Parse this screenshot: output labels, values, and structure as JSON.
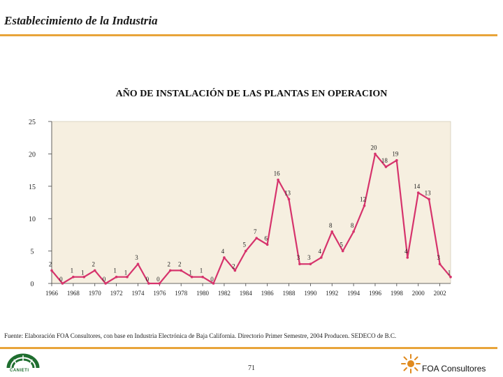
{
  "slide": {
    "title": "Establecimiento de la Industria",
    "source": "Fuente: Elaboración FOA Consultores, con base en Industria Electrónica de Baja California. Directorio Primer Semestre, 2004 Producen. SEDECO de  B.C.",
    "page_number": "71",
    "footer_right": "FOA Consultores",
    "footer_left_logo": "CANIETI",
    "colors": {
      "accent_rule": "#e8a43a",
      "line": "#d6336c",
      "plot_bg": "#f6efe0",
      "logo_green": "#1f6e2f",
      "logo_orange": "#e08a1e"
    }
  },
  "chart_data": {
    "type": "line",
    "title": "AÑO DE INSTALACIÓN DE LAS PLANTAS EN OPERACION",
    "xlabel": "",
    "ylabel": "",
    "x": [
      1966,
      1967,
      1968,
      1969,
      1970,
      1971,
      1972,
      1973,
      1974,
      1975,
      1976,
      1977,
      1978,
      1979,
      1980,
      1981,
      1982,
      1983,
      1984,
      1985,
      1986,
      1987,
      1988,
      1989,
      1990,
      1991,
      1992,
      1993,
      1994,
      1995,
      1996,
      1997,
      1998,
      1999,
      2000,
      2001,
      2002,
      2003
    ],
    "values": [
      2,
      0,
      1,
      1,
      2,
      0,
      1,
      1,
      3,
      0,
      0,
      2,
      2,
      1,
      1,
      0,
      4,
      2,
      5,
      7,
      6,
      16,
      13,
      3,
      3,
      4,
      8,
      5,
      8,
      12,
      20,
      18,
      19,
      4,
      14,
      13,
      3,
      1
    ],
    "xlim": [
      1966,
      2003
    ],
    "ylim": [
      0,
      25
    ],
    "x_ticks": [
      "1966",
      "1968",
      "1970",
      "1972",
      "1974",
      "1976",
      "1978",
      "1980",
      "1982",
      "1984",
      "1986",
      "1988",
      "1990",
      "1992",
      "1994",
      "1996",
      "1998",
      "2000",
      "2002"
    ],
    "y_ticks": [
      "0",
      "5",
      "10",
      "15",
      "20",
      "25"
    ],
    "grid": false,
    "legend": "none"
  }
}
